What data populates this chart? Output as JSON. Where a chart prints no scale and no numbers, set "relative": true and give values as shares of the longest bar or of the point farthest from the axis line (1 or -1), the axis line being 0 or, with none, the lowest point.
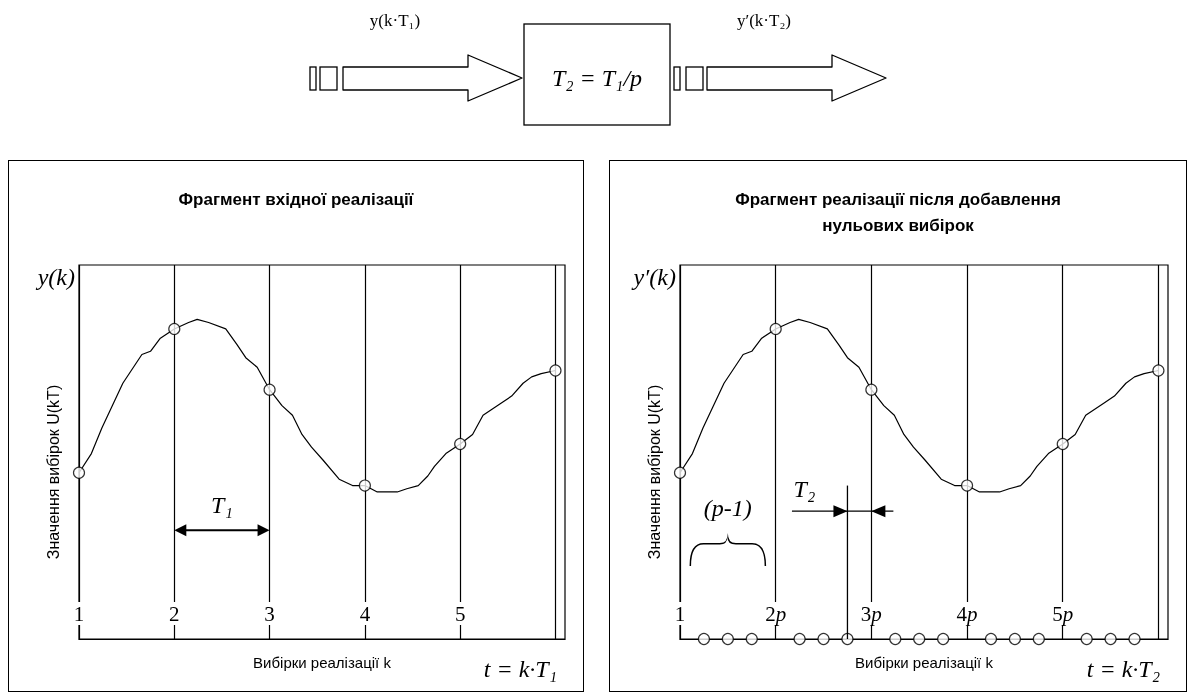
{
  "chart_data": [
    {
      "type": "other",
      "annotations": [
        "y(k·T₁)",
        "T₂ = T₁/p",
        "y′(k·T₂)"
      ]
    },
    {
      "type": "line",
      "title": "Фрагмент вхідної реалізації",
      "xlabel": "Вибірки реалізації k",
      "ylabel": "Значення вибірок U(kT)",
      "annotations": [
        "y(k)",
        "T₁",
        "t = k·T₁"
      ],
      "relative": true,
      "xlim": [
        1,
        6.1
      ],
      "xticks": [
        1,
        2,
        3,
        4,
        5,
        {
          "value": 6,
          "label": null
        }
      ],
      "grid": "x",
      "series": [
        {
          "type": "line",
          "color": "#000000",
          "marker": "none",
          "x": [
            1,
            1.13,
            1.24,
            1.46,
            1.66,
            1.75,
            1.85,
            2,
            2.15,
            2.24,
            2.36,
            2.54,
            2.66,
            2.75,
            2.87,
            3,
            3.13,
            3.24,
            3.34,
            3.44,
            3.56,
            3.73,
            3.87,
            4,
            4.13,
            4.22,
            4.34,
            4.44,
            4.56,
            4.66,
            4.73,
            4.85,
            5,
            5.13,
            5.24,
            5.44,
            5.54,
            5.66,
            5.75,
            5.85,
            6
          ],
          "values": [
            0.52,
            0.58,
            0.66,
            0.8,
            0.89,
            0.9,
            0.94,
            0.97,
            0.99,
            1,
            0.99,
            0.97,
            0.92,
            0.88,
            0.85,
            0.78,
            0.73,
            0.7,
            0.64,
            0.6,
            0.56,
            0.5,
            0.48,
            0.48,
            0.46,
            0.46,
            0.46,
            0.47,
            0.48,
            0.51,
            0.54,
            0.58,
            0.61,
            0.64,
            0.7,
            0.74,
            0.76,
            0.8,
            0.82,
            0.83,
            0.84
          ]
        },
        {
          "type": "scatter",
          "color": "#000000",
          "marker": "circle",
          "x": [
            1,
            2,
            3,
            4,
            5,
            6
          ],
          "values": [
            0.52,
            0.97,
            0.78,
            0.48,
            0.61,
            0.84
          ]
        }
      ]
    },
    {
      "type": "line",
      "title": "Фрагмент реалізації після добавлення нульових вибірок",
      "xlabel": "Вибірки реалізації k",
      "ylabel": "Значення вибірок U(kT)",
      "annotations": [
        "y′(k)",
        "(p-1)",
        "T₂",
        "t = k·T₂"
      ],
      "relative": true,
      "xlim": [
        1,
        6.1
      ],
      "xticks": [
        1,
        {
          "value": 2,
          "label": "2p"
        },
        {
          "value": 3,
          "label": "3p"
        },
        {
          "value": 4,
          "label": "4p"
        },
        {
          "value": 5,
          "label": "5p"
        },
        {
          "value": 6,
          "label": null
        }
      ],
      "grid": "x",
      "series": [
        {
          "type": "line",
          "color": "#000000",
          "marker": "none",
          "x": [
            1,
            1.13,
            1.24,
            1.46,
            1.66,
            1.75,
            1.85,
            2,
            2.15,
            2.24,
            2.36,
            2.54,
            2.66,
            2.75,
            2.87,
            3,
            3.13,
            3.24,
            3.34,
            3.44,
            3.56,
            3.73,
            3.87,
            4,
            4.13,
            4.22,
            4.34,
            4.44,
            4.56,
            4.66,
            4.73,
            4.85,
            5,
            5.13,
            5.24,
            5.44,
            5.54,
            5.66,
            5.75,
            5.85,
            6
          ],
          "values": [
            0.52,
            0.58,
            0.66,
            0.8,
            0.89,
            0.9,
            0.94,
            0.97,
            0.99,
            1,
            0.99,
            0.97,
            0.92,
            0.88,
            0.85,
            0.78,
            0.73,
            0.7,
            0.64,
            0.6,
            0.56,
            0.5,
            0.48,
            0.48,
            0.46,
            0.46,
            0.46,
            0.47,
            0.48,
            0.51,
            0.54,
            0.58,
            0.61,
            0.64,
            0.7,
            0.74,
            0.76,
            0.8,
            0.82,
            0.83,
            0.84
          ]
        },
        {
          "type": "scatter",
          "color": "#000000",
          "marker": "circle",
          "x": [
            1,
            1.25,
            1.5,
            1.75,
            2,
            2.25,
            2.5,
            2.75,
            3,
            3.25,
            3.5,
            3.75,
            4,
            4.25,
            4.5,
            4.75,
            5,
            5.25,
            5.5,
            5.75,
            6
          ],
          "values": [
            0.52,
            0,
            0,
            0,
            0.97,
            0,
            0,
            0,
            0.78,
            0,
            0,
            0,
            0.48,
            0,
            0,
            0,
            0.61,
            0,
            0,
            0,
            0.84
          ]
        }
      ]
    }
  ]
}
